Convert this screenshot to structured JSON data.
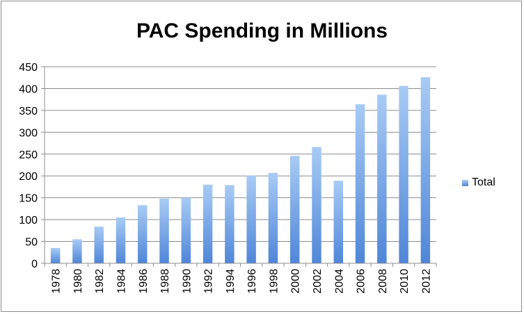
{
  "chart_data": {
    "type": "bar",
    "title": "PAC Spending in Millions",
    "xlabel": "",
    "ylabel": "",
    "categories": [
      "1978",
      "1980",
      "1982",
      "1984",
      "1986",
      "1988",
      "1990",
      "1992",
      "1994",
      "1996",
      "1998",
      "2000",
      "2002",
      "2004",
      "2006",
      "2008",
      "2010",
      "2012"
    ],
    "series": [
      {
        "name": "Total",
        "values": [
          35,
          55,
          84,
          105,
          133,
          148,
          150,
          180,
          179,
          201,
          207,
          246,
          266,
          189,
          364,
          386,
          406,
          426
        ]
      }
    ],
    "ylim": [
      0,
      450
    ],
    "yticks": [
      0,
      50,
      100,
      150,
      200,
      250,
      300,
      350,
      400,
      450
    ],
    "grid": true,
    "legend": "right",
    "bar_color_top": "#a8cbf5",
    "bar_color_bottom": "#4f86d8"
  }
}
